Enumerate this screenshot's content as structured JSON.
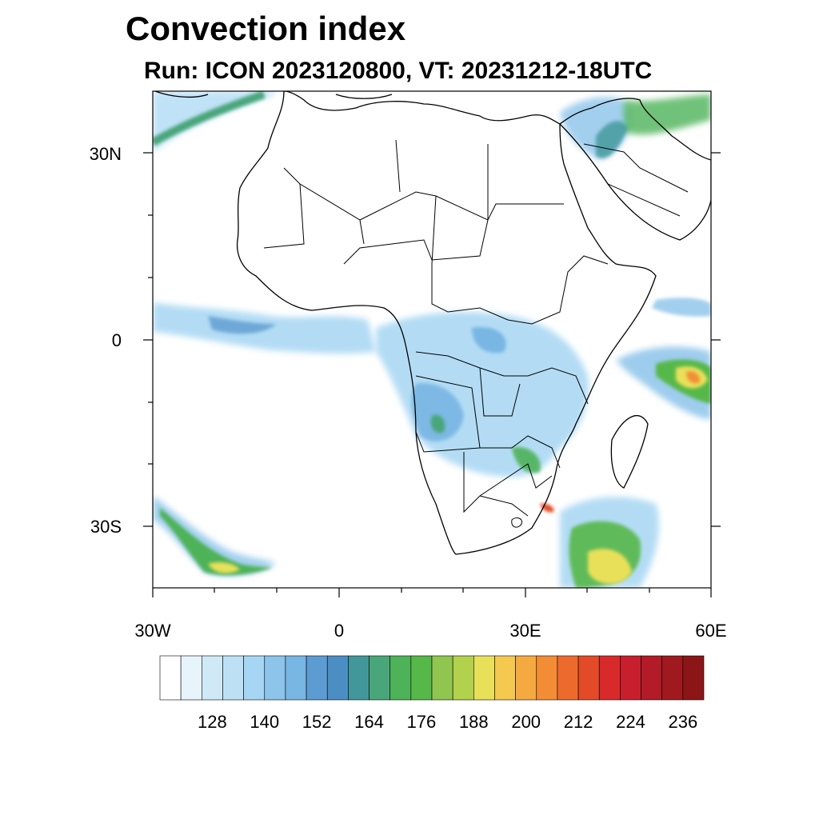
{
  "title": "Convection index",
  "subtitle": "Run: ICON 2023120800,  VT: 20231212-18UTC",
  "lat_labels": [
    "30N",
    "0",
    "30S"
  ],
  "lon_labels": [
    "30W",
    "0",
    "30E",
    "60E"
  ],
  "colorbar": {
    "colors": [
      "#ffffff",
      "#e8f4fb",
      "#d0e9f7",
      "#bde0f5",
      "#a6d6f3",
      "#8cc4ea",
      "#78b6e3",
      "#5d9cd2",
      "#4a8ec4",
      "#41979a",
      "#49a67a",
      "#4db258",
      "#56b848",
      "#90c54f",
      "#b2d14d",
      "#e9e05a",
      "#f5c84f",
      "#f5a941",
      "#f28d36",
      "#ed6a2d",
      "#e34a28",
      "#d82a2b",
      "#c71f2d",
      "#b21b27",
      "#a0191f",
      "#8c1518"
    ],
    "tick_labels": [
      "128",
      "140",
      "152",
      "164",
      "176",
      "188",
      "200",
      "212",
      "224",
      "236"
    ]
  }
}
